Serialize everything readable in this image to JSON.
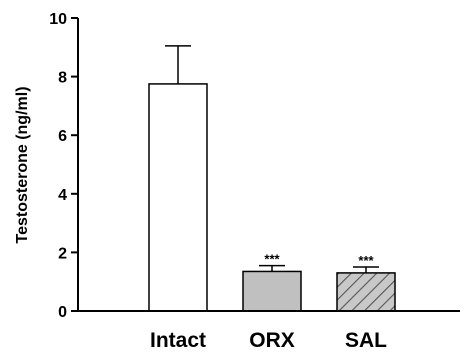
{
  "chart_data": {
    "type": "bar",
    "title": "",
    "xlabel": "",
    "ylabel": "Testosterone (ng/ml)",
    "ylim": [
      0,
      10
    ],
    "yticks": [
      0,
      2,
      4,
      6,
      8,
      10
    ],
    "grid": false,
    "categories": [
      "Intact",
      "ORX",
      "SAL"
    ],
    "values": [
      7.75,
      1.35,
      1.3
    ],
    "error_upper": [
      1.3,
      0.2,
      0.2
    ],
    "significance": [
      "",
      "***",
      "***"
    ],
    "bar_styles": [
      {
        "fill": "#ffffff",
        "pattern": "none"
      },
      {
        "fill": "#c0c0c0",
        "pattern": "none"
      },
      {
        "fill": "#c8c8c8",
        "pattern": "diagonal-hatch"
      }
    ],
    "colors": {
      "axis": "#000000",
      "hatch": "#555555"
    }
  }
}
